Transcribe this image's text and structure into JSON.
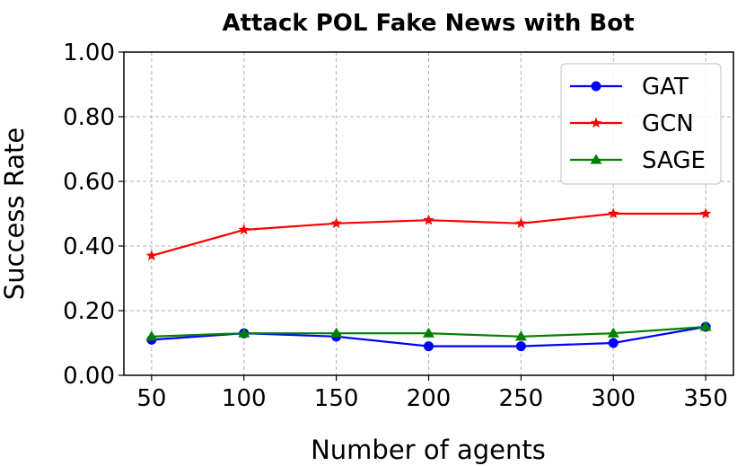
{
  "chart_data": {
    "type": "line",
    "title": "Attack POL Fake News with Bot",
    "xlabel": "Number of agents",
    "ylabel": "Success Rate",
    "x": [
      50,
      100,
      150,
      200,
      250,
      300,
      350
    ],
    "x_tick_labels": [
      "50",
      "100",
      "150",
      "200",
      "250",
      "300",
      "350"
    ],
    "y_tick_labels": [
      "0.00",
      "0.20",
      "0.40",
      "0.60",
      "0.80",
      "1.00"
    ],
    "y_ticks": [
      0,
      0.2,
      0.4,
      0.6,
      0.8,
      1.0
    ],
    "xlim": [
      35,
      365
    ],
    "ylim": [
      0,
      1.0
    ],
    "grid": true,
    "legend_position": "top-right",
    "series": [
      {
        "name": "GAT",
        "color": "#0000ff",
        "marker": "circle",
        "values": [
          0.11,
          0.13,
          0.12,
          0.09,
          0.09,
          0.1,
          0.15
        ]
      },
      {
        "name": "GCN",
        "color": "#ff0000",
        "marker": "star",
        "values": [
          0.37,
          0.45,
          0.47,
          0.48,
          0.47,
          0.5,
          0.5
        ]
      },
      {
        "name": "SAGE",
        "color": "#008000",
        "marker": "triangle",
        "values": [
          0.12,
          0.13,
          0.13,
          0.13,
          0.12,
          0.13,
          0.15
        ]
      }
    ]
  }
}
